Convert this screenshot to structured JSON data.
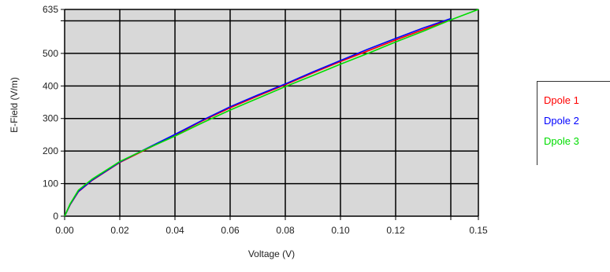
{
  "chart_data": {
    "type": "line",
    "xlabel": "Voltage (V)",
    "ylabel": "E-Field (V/m)",
    "xlim": [
      0,
      0.15
    ],
    "ylim": [
      0,
      635
    ],
    "x_ticks": [
      0,
      0.02,
      0.04,
      0.06,
      0.08,
      0.1,
      0.12,
      0.14,
      0.15
    ],
    "x_tick_labels": [
      "0.00",
      "0.02",
      "0.04",
      "0.06",
      "0.08",
      "0.10",
      "0.12",
      "",
      "0.15"
    ],
    "y_ticks": [
      0,
      100,
      200,
      300,
      400,
      500,
      600,
      635
    ],
    "y_tick_labels": [
      "0",
      "100",
      "200",
      "300",
      "400",
      "500",
      "",
      "635"
    ],
    "grid": true,
    "legend_position": "right",
    "x": [
      0,
      0.002,
      0.005,
      0.01,
      0.02,
      0.03,
      0.04,
      0.05,
      0.06,
      0.07,
      0.08,
      0.09,
      0.1,
      0.11,
      0.12,
      0.13,
      0.14,
      0.15
    ],
    "series": [
      {
        "name": "Dpole 1",
        "color": "#ff0000",
        "values": [
          0,
          35,
          75,
          110,
          165,
          207,
          249,
          293,
          333,
          369,
          404,
          440,
          475,
          508,
          541,
          573,
          605,
          null
        ]
      },
      {
        "name": "Dpole 2",
        "color": "#0000ff",
        "values": [
          0,
          36,
          76,
          111,
          166,
          209,
          251,
          295,
          336,
          372,
          406,
          443,
          478,
          513,
          546,
          578,
          607,
          null
        ]
      },
      {
        "name": "Dpole 3",
        "color": "#00dd00",
        "values": [
          0,
          38,
          80,
          114,
          168,
          208,
          246,
          287,
          326,
          362,
          398,
          432,
          467,
          500,
          535,
          568,
          603,
          635
        ]
      }
    ]
  }
}
